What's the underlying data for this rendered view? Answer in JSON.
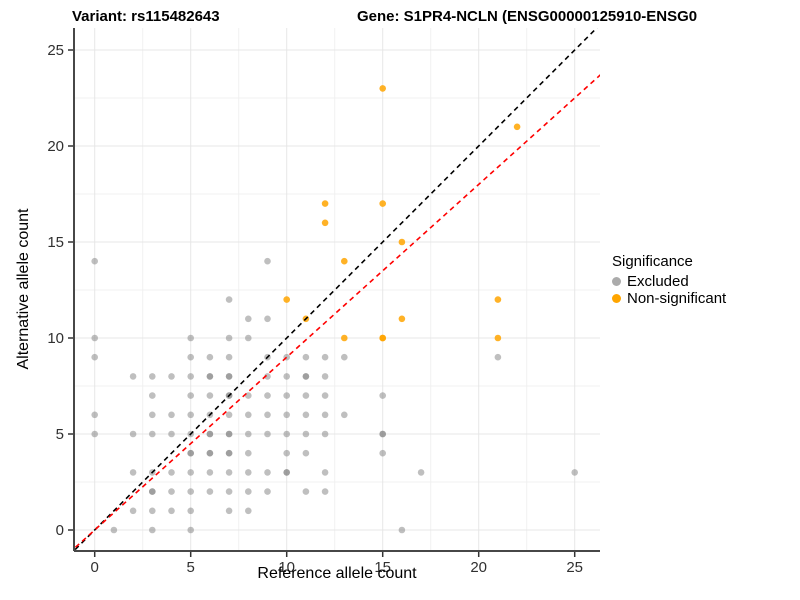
{
  "legend": {
    "title": "Significance",
    "items": [
      {
        "label": "Excluded",
        "color": "#ABABAB"
      },
      {
        "label": "Non-significant",
        "color": "#FFA500"
      }
    ]
  },
  "chart_data": {
    "type": "scatter",
    "title_left": "Variant: rs115482643",
    "title_right": "Gene: S1PR4-NCLN (ENSG00000125910-ENSG0",
    "xlabel": "Reference allele count",
    "ylabel": "Alternative allele count",
    "x_ticks": [
      0,
      5,
      10,
      15,
      20,
      25
    ],
    "y_ticks": [
      0,
      5,
      10,
      15,
      20,
      25
    ],
    "xlim": [
      -1.05,
      26.3
    ],
    "ylim": [
      -1.05,
      26.15
    ],
    "grid": true,
    "legend_position": "right",
    "series": [
      {
        "name": "Excluded",
        "color": "#808080",
        "opacity": 0.5,
        "points": [
          [
            1,
            0
          ],
          [
            3,
            0
          ],
          [
            5,
            0
          ],
          [
            16,
            0
          ],
          [
            2,
            1
          ],
          [
            3,
            1
          ],
          [
            4,
            1
          ],
          [
            5,
            1
          ],
          [
            7,
            1
          ],
          [
            8,
            1
          ],
          [
            3,
            2
          ],
          [
            4,
            2
          ],
          [
            5,
            2
          ],
          [
            6,
            2
          ],
          [
            7,
            2
          ],
          [
            8,
            2
          ],
          [
            9,
            2
          ],
          [
            11,
            2
          ],
          [
            12,
            2
          ],
          [
            2,
            3
          ],
          [
            3,
            3
          ],
          [
            4,
            3
          ],
          [
            5,
            3
          ],
          [
            6,
            3
          ],
          [
            7,
            3
          ],
          [
            8,
            3
          ],
          [
            9,
            3
          ],
          [
            10,
            3
          ],
          [
            12,
            3
          ],
          [
            17,
            3
          ],
          [
            25,
            3
          ],
          [
            5,
            4
          ],
          [
            6,
            4
          ],
          [
            7,
            4
          ],
          [
            8,
            4
          ],
          [
            10,
            4
          ],
          [
            11,
            4
          ],
          [
            15,
            4
          ],
          [
            0,
            5
          ],
          [
            2,
            5
          ],
          [
            3,
            5
          ],
          [
            4,
            5
          ],
          [
            5,
            5
          ],
          [
            6,
            5
          ],
          [
            7,
            5
          ],
          [
            8,
            5
          ],
          [
            9,
            5
          ],
          [
            10,
            5
          ],
          [
            11,
            5
          ],
          [
            12,
            5
          ],
          [
            15,
            5
          ],
          [
            0,
            6
          ],
          [
            3,
            6
          ],
          [
            4,
            6
          ],
          [
            5,
            6
          ],
          [
            6,
            6
          ],
          [
            7,
            6
          ],
          [
            8,
            6
          ],
          [
            9,
            6
          ],
          [
            10,
            6
          ],
          [
            11,
            6
          ],
          [
            12,
            6
          ],
          [
            13,
            6
          ],
          [
            3,
            7
          ],
          [
            5,
            7
          ],
          [
            6,
            7
          ],
          [
            7,
            7
          ],
          [
            8,
            7
          ],
          [
            9,
            7
          ],
          [
            10,
            7
          ],
          [
            11,
            7
          ],
          [
            12,
            7
          ],
          [
            15,
            7
          ],
          [
            2,
            8
          ],
          [
            3,
            8
          ],
          [
            4,
            8
          ],
          [
            5,
            8
          ],
          [
            6,
            8
          ],
          [
            7,
            8
          ],
          [
            9,
            8
          ],
          [
            10,
            8
          ],
          [
            11,
            8
          ],
          [
            12,
            8
          ],
          [
            0,
            9
          ],
          [
            5,
            9
          ],
          [
            6,
            9
          ],
          [
            7,
            9
          ],
          [
            9,
            9
          ],
          [
            10,
            9
          ],
          [
            11,
            9
          ],
          [
            12,
            9
          ],
          [
            13,
            9
          ],
          [
            21,
            9
          ],
          [
            0,
            10
          ],
          [
            5,
            10
          ],
          [
            7,
            10
          ],
          [
            8,
            10
          ],
          [
            8,
            11
          ],
          [
            9,
            11
          ],
          [
            7,
            12
          ],
          [
            0,
            14
          ],
          [
            9,
            14
          ]
        ],
        "overplotted_points": [
          [
            3,
            2
          ],
          [
            10,
            3
          ],
          [
            5,
            4
          ],
          [
            6,
            4
          ],
          [
            7,
            4
          ],
          [
            6,
            5
          ],
          [
            7,
            5
          ],
          [
            15,
            5
          ],
          [
            7,
            7
          ],
          [
            6,
            8
          ],
          [
            7,
            8
          ],
          [
            11,
            8
          ]
        ]
      },
      {
        "name": "Non-significant",
        "color": "#FFA500",
        "opacity": 0.85,
        "points": [
          [
            10,
            12
          ],
          [
            11,
            11
          ],
          [
            12,
            16
          ],
          [
            12,
            17
          ],
          [
            13,
            10
          ],
          [
            13,
            14
          ],
          [
            15,
            10
          ],
          [
            15,
            17
          ],
          [
            15,
            23
          ],
          [
            16,
            11
          ],
          [
            16,
            15
          ],
          [
            21,
            10
          ],
          [
            21,
            12
          ],
          [
            22,
            21
          ]
        ],
        "overplotted_points": [
          [
            15,
            10
          ]
        ]
      }
    ],
    "lines": [
      {
        "name": "identity-line",
        "color": "#000000",
        "slope": 1,
        "intercept": 0,
        "dashed": true
      },
      {
        "name": "fit-line",
        "color": "#FF0000",
        "slope": 0.9,
        "intercept": 0,
        "dashed": true
      }
    ]
  }
}
